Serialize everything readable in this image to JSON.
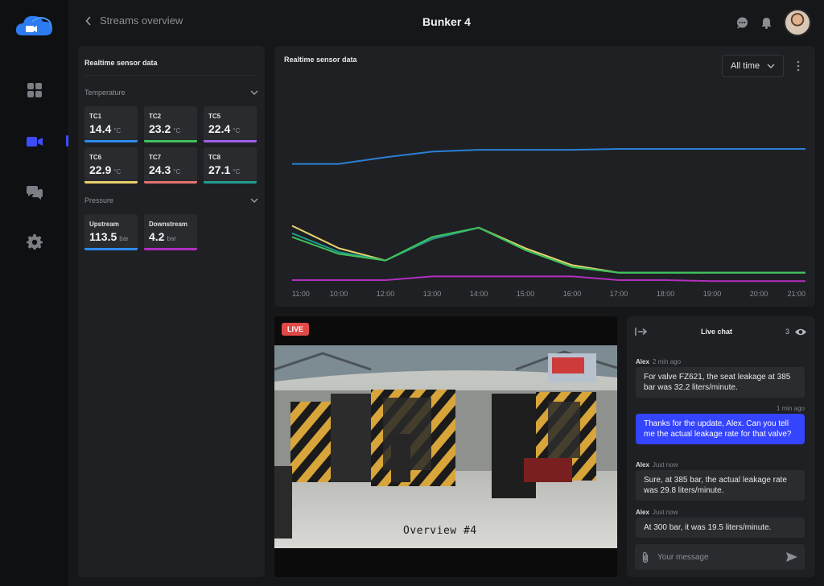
{
  "header": {
    "back_label": "Streams overview",
    "title": "Bunker 4"
  },
  "sidebar": {
    "items": [
      {
        "icon": "dashboard-icon"
      },
      {
        "icon": "video-camera-icon",
        "active": true
      },
      {
        "icon": "chat-icon"
      },
      {
        "icon": "settings-gear-icon"
      }
    ]
  },
  "sensor_panel": {
    "title": "Realtime sensor data",
    "groups": [
      {
        "label": "Temperature",
        "tiles": [
          {
            "name": "TC1",
            "value": "14.4",
            "unit": "°C",
            "color": "#2f8cf0"
          },
          {
            "name": "TC2",
            "value": "23.2",
            "unit": "°C",
            "color": "#3fc15a"
          },
          {
            "name": "TC5",
            "value": "22.4",
            "unit": "°C",
            "color": "#a15de8"
          },
          {
            "name": "TC6",
            "value": "22.9",
            "unit": "°C",
            "color": "#e7d06b"
          },
          {
            "name": "TC7",
            "value": "24.3",
            "unit": "°C",
            "color": "#e5716f"
          },
          {
            "name": "TC8",
            "value": "27.1",
            "unit": "°C",
            "color": "#1f9d8f"
          }
        ]
      },
      {
        "label": "Pressure",
        "tiles": [
          {
            "name": "Upstream",
            "value": "113.5",
            "unit": "bar",
            "color": "#2f8cf0"
          },
          {
            "name": "Downstream",
            "value": "4.2",
            "unit": "bar",
            "color": "#b12fbf"
          }
        ]
      }
    ]
  },
  "chart_panel": {
    "title": "Realtime sensor data",
    "range_select": "All time"
  },
  "chart_data": {
    "type": "line",
    "x": [
      "11:00",
      "10:00",
      "12:00",
      "13:00",
      "14:00",
      "15:00",
      "16:00",
      "17:00",
      "18:00",
      "19:00",
      "20:00",
      "21:00"
    ],
    "grid": false,
    "series": [
      {
        "color": "#2a7fd6",
        "values": [
          95,
          95,
          98.5,
          101.5,
          102.5,
          102.5,
          102.5,
          103,
          103,
          103,
          103,
          103
        ]
      },
      {
        "color": "#e8d46f",
        "values": [
          62,
          50,
          43.5,
          55,
          61,
          50,
          41,
          37,
          37,
          37,
          37,
          37
        ]
      },
      {
        "color": "#1f9d8f",
        "values": [
          58,
          48,
          43.5,
          55,
          61,
          49,
          40,
          37,
          37,
          37,
          37,
          37
        ]
      },
      {
        "color": "#3ec25a",
        "values": [
          56,
          47,
          43.5,
          56,
          61,
          49,
          40,
          37,
          37,
          37,
          37,
          37
        ]
      },
      {
        "color": "#b12fbf",
        "values": [
          33,
          33,
          33,
          35,
          35,
          35,
          35,
          33,
          33,
          32.5,
          32.5,
          32.5
        ]
      }
    ],
    "ylim": [
      30,
      115
    ]
  },
  "video": {
    "live_label": "LIVE",
    "caption": "Overview #4"
  },
  "chat": {
    "title": "Live chat",
    "viewer_count": "3",
    "messages": [
      {
        "author": "Alex",
        "time": "2 min ago",
        "text": "For valve FZ621, the seat leakage at 385 bar was 32.2 liters/minute.",
        "mine": false
      },
      {
        "author": "",
        "time": "1 min ago",
        "text": "Thanks for the update, Alex. Can you tell me the actual leakage rate for that valve?",
        "mine": true
      },
      {
        "author": "Alex",
        "time": "Just now",
        "text": "Sure, at 385 bar, the actual leakage rate was 29.8 liters/minute.",
        "mine": false
      },
      {
        "author": "Alex",
        "time": "Just now",
        "text": "At 300 bar, it was 19.5 liters/minute.",
        "mine": false
      }
    ],
    "input_placeholder": "Your message"
  }
}
